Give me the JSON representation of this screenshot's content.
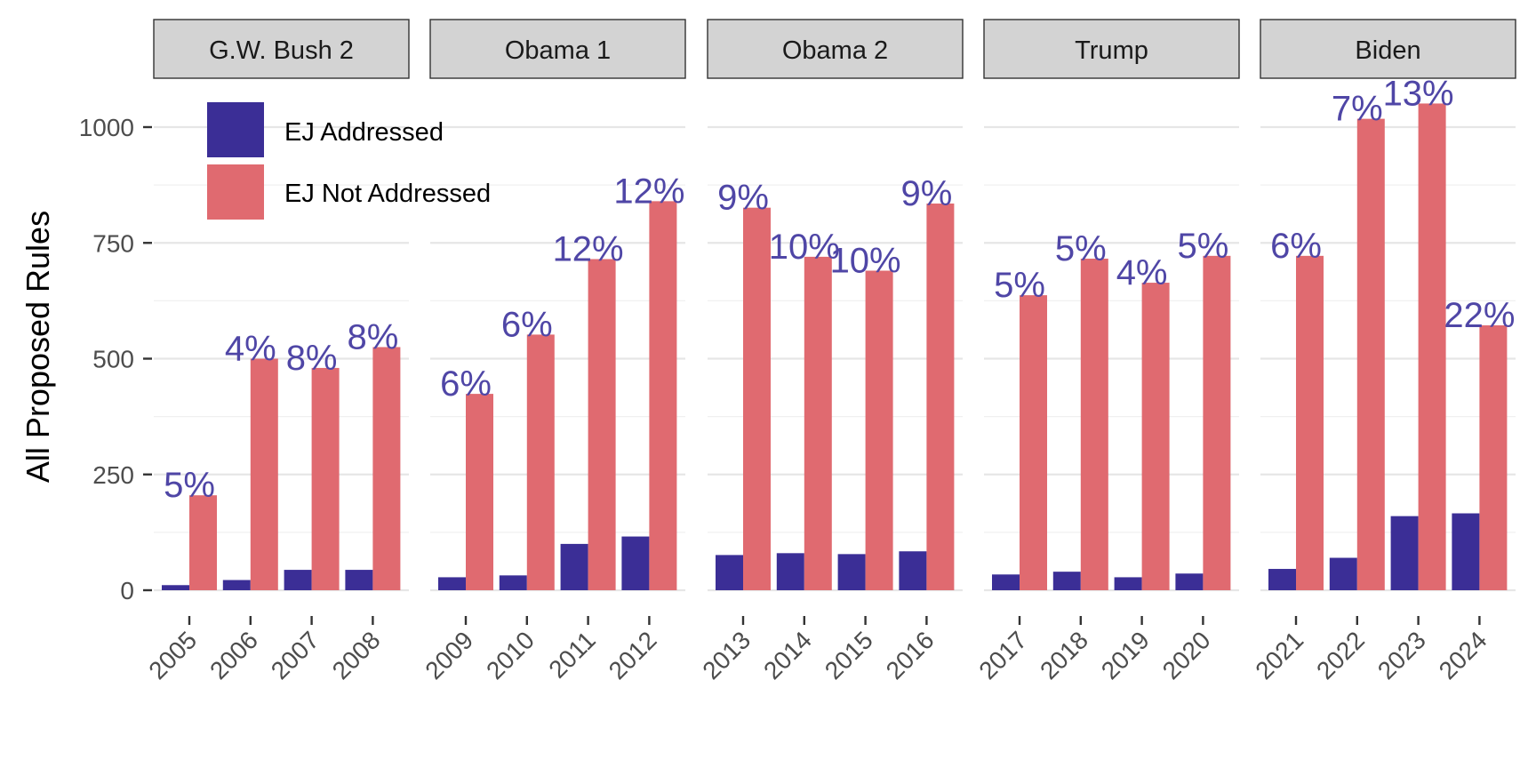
{
  "chart_data": {
    "type": "bar",
    "ylabel": "All Proposed Rules",
    "yticks": [
      0,
      250,
      500,
      750,
      1000
    ],
    "ylim": [
      0,
      1100
    ],
    "grid": true,
    "legend_position": "top-left",
    "colors": {
      "EJ Addressed": "#3b2e96",
      "EJ Not Addressed": "#e06a70",
      "label_color": "#4f46a6"
    },
    "series_names": [
      "EJ Addressed",
      "EJ Not Addressed"
    ],
    "panels": [
      {
        "name": "G.W. Bush 2",
        "years": [
          "2005",
          "2006",
          "2007",
          "2008"
        ],
        "ej_addressed": [
          11,
          22,
          44,
          44
        ],
        "ej_not_addressed": [
          205,
          500,
          480,
          525
        ],
        "pct_labels": [
          "5%",
          "4%",
          "8%",
          "8%"
        ]
      },
      {
        "name": "Obama 1",
        "years": [
          "2009",
          "2010",
          "2011",
          "2012"
        ],
        "ej_addressed": [
          28,
          32,
          100,
          116
        ],
        "ej_not_addressed": [
          424,
          552,
          715,
          840
        ],
        "pct_labels": [
          "6%",
          "6%",
          "12%",
          "12%"
        ]
      },
      {
        "name": "Obama 2",
        "years": [
          "2013",
          "2014",
          "2015",
          "2016"
        ],
        "ej_addressed": [
          76,
          80,
          78,
          84
        ],
        "ej_not_addressed": [
          826,
          720,
          690,
          835
        ],
        "pct_labels": [
          "9%",
          "10%",
          "10%",
          "9%"
        ]
      },
      {
        "name": "Trump",
        "years": [
          "2017",
          "2018",
          "2019",
          "2020"
        ],
        "ej_addressed": [
          34,
          40,
          28,
          36
        ],
        "ej_not_addressed": [
          637,
          716,
          664,
          722
        ],
        "pct_labels": [
          "5%",
          "5%",
          "4%",
          "5%"
        ]
      },
      {
        "name": "Biden",
        "years": [
          "2021",
          "2022",
          "2023",
          "2024"
        ],
        "ej_addressed": [
          46,
          70,
          160,
          166
        ],
        "ej_not_addressed": [
          722,
          1018,
          1051,
          572
        ],
        "pct_labels": [
          "6%",
          "7%",
          "13%",
          "22%"
        ]
      }
    ]
  }
}
